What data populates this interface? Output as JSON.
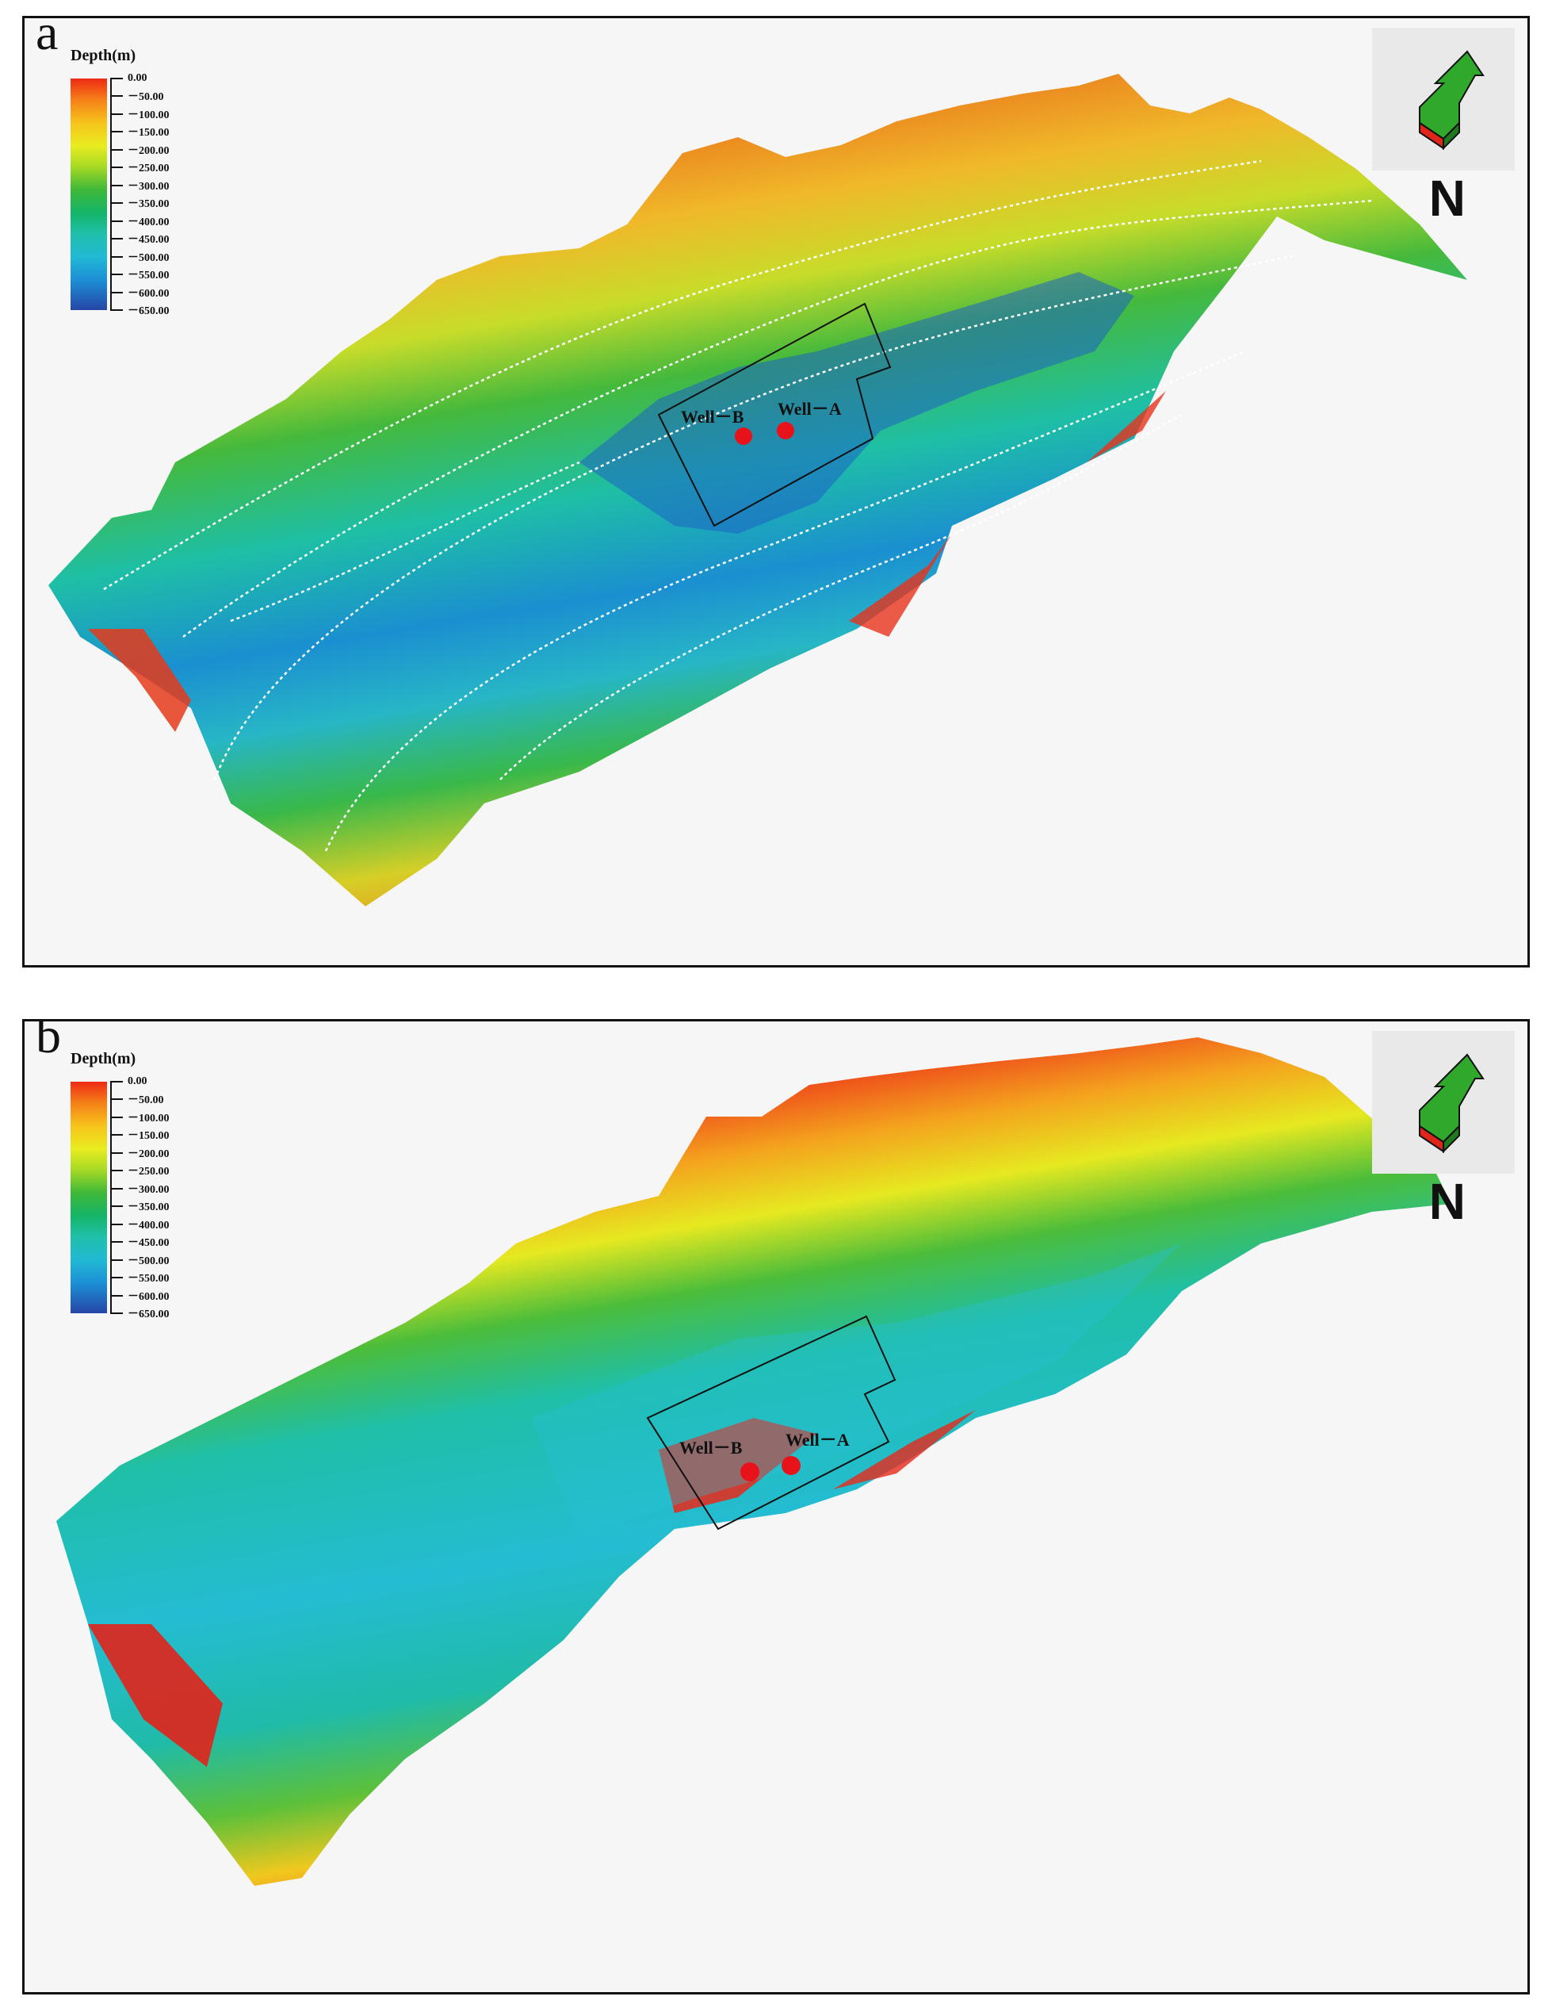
{
  "panels": [
    {
      "letter": "a",
      "legend": {
        "title": "Depth(m)",
        "ticks": [
          "0.00",
          "－50.00",
          "－100.00",
          "－150.00",
          "－200.00",
          "－250.00",
          "－300.00",
          "－350.00",
          "－400.00",
          "－450.00",
          "－500.00",
          "－550.00",
          "－600.00",
          "－650.00"
        ]
      },
      "north_label": "N",
      "wells": [
        "Well－B",
        "Well－A"
      ],
      "contours": true
    },
    {
      "letter": "b",
      "legend": {
        "title": "Depth(m)",
        "ticks": [
          "0.00",
          "－50.00",
          "－100.00",
          "－150.00",
          "－200.00",
          "－250.00",
          "－300.00",
          "－350.00",
          "－400.00",
          "－450.00",
          "－500.00",
          "－550.00",
          "－600.00",
          "－650.00"
        ]
      },
      "north_label": "N",
      "wells": [
        "Well－B",
        "Well－A"
      ],
      "contours": false
    }
  ],
  "colors": {
    "shallow": "#ee2a16",
    "mid": "#3fb839",
    "deep": "#2646a6",
    "well_marker": "#e8121b",
    "contour_line": "#ffffff"
  }
}
